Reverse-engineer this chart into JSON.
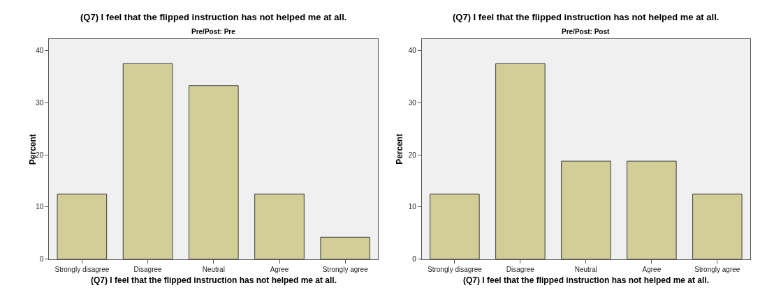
{
  "chart_data": [
    {
      "type": "bar",
      "title": "(Q7) I feel that the flipped instruction has not helped me at all.",
      "subtitle": "Pre/Post: Pre",
      "xlabel": "(Q7) I feel that the flipped instruction has not helped me at all.",
      "ylabel": "Percent",
      "categories": [
        "Strongly disagree",
        "Disagree",
        "Neutral",
        "Agree",
        "Strongly agree"
      ],
      "values": [
        12.5,
        37.5,
        33.3,
        12.5,
        4.2
      ],
      "color": "#d3ce97",
      "ylim": [
        0,
        42.2
      ],
      "yticks": [
        0,
        10,
        20,
        30,
        40
      ],
      "grid": false
    },
    {
      "type": "bar",
      "title": "(Q7) I feel that the flipped instruction has not helped me at all.",
      "subtitle": "Pre/Post: Post",
      "xlabel": "(Q7) I feel that the flipped instruction has not helped me at all.",
      "ylabel": "Percent",
      "categories": [
        "Strongly disagree",
        "Disagree",
        "Neutral",
        "Agree",
        "Strongly agree"
      ],
      "values": [
        12.5,
        37.5,
        18.8,
        18.8,
        12.5
      ],
      "color": "#d3ce97",
      "ylim": [
        0,
        42.2
      ],
      "yticks": [
        0,
        10,
        20,
        30,
        40
      ],
      "grid": false
    }
  ]
}
